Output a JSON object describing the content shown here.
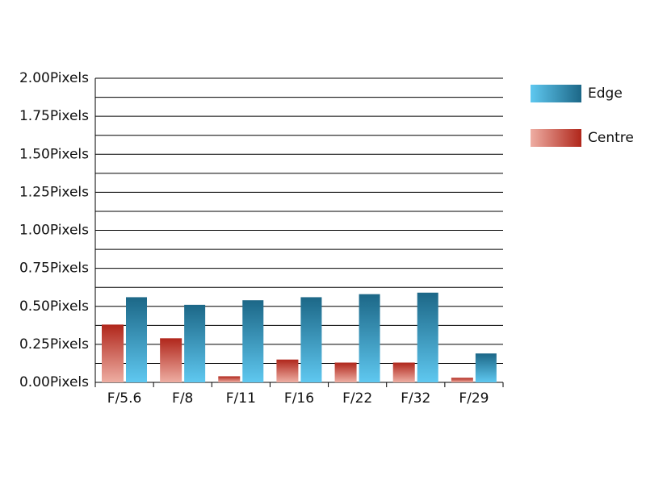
{
  "chart_data": {
    "type": "bar",
    "categories": [
      "F/5.6",
      "F/8",
      "F/11",
      "F/16",
      "F/22",
      "F/32",
      "F/29"
    ],
    "series": [
      {
        "name": "Centre",
        "color": "#b0261b",
        "values": [
          0.38,
          0.29,
          0.04,
          0.15,
          0.13,
          0.13,
          0.03
        ]
      },
      {
        "name": "Edge",
        "color": "#1c6787",
        "values": [
          0.56,
          0.51,
          0.54,
          0.56,
          0.58,
          0.59,
          0.19
        ]
      }
    ],
    "ylim": [
      0,
      2
    ],
    "yticks": [
      {
        "value": 0,
        "label": "0.00Pixels"
      },
      {
        "value": 0.25,
        "label": "0.25Pixels"
      },
      {
        "value": 0.5,
        "label": "0.50Pixels"
      },
      {
        "value": 0.75,
        "label": "0.75Pixels"
      },
      {
        "value": 1,
        "label": "1.00Pixels"
      },
      {
        "value": 1.25,
        "label": "1.25Pixels"
      },
      {
        "value": 1.5,
        "label": "1.50Pixels"
      },
      {
        "value": 1.75,
        "label": "1.75Pixels"
      },
      {
        "value": 2,
        "label": "2.00Pixels"
      }
    ],
    "minor_yticks": [
      0.125,
      0.375,
      0.625,
      0.875,
      1.125,
      1.375,
      1.625,
      1.875
    ],
    "grid": true
  }
}
